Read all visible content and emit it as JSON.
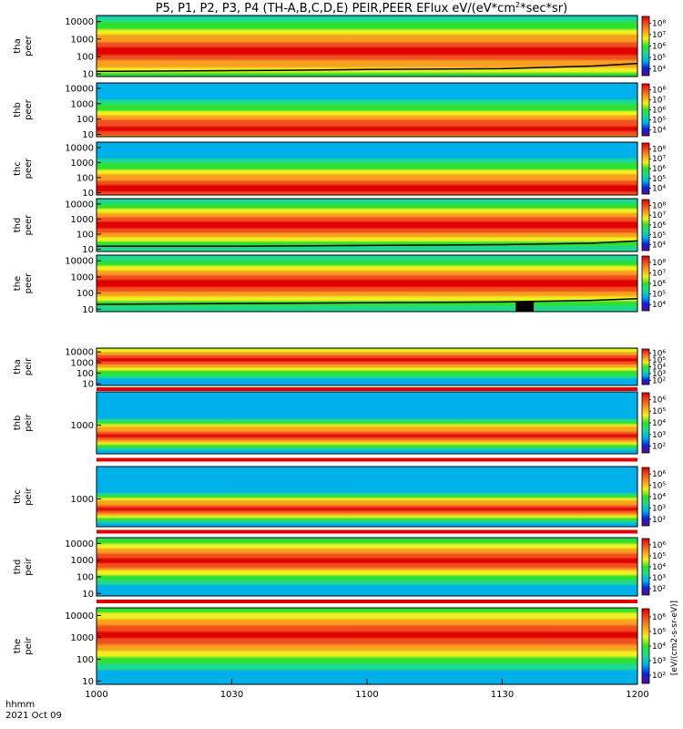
{
  "chart_data": {
    "type": "heatmap",
    "title_prefix": "P5, P1, P2, P3, P4 (TH-A,B,C,D,E) PEIR,PEER EFlux eV/(eV*cm",
    "title_superscript": "2",
    "title_suffix": "*sec*sr)",
    "time_axis_label": "hhmm",
    "date_label": "2021 Oct 09",
    "x_tick_labels": [
      "1000",
      "1030",
      "1100",
      "1130",
      "1200"
    ],
    "x_tick_minutes": [
      0,
      30,
      60,
      90,
      120
    ],
    "x_range_minutes": [
      0,
      120
    ],
    "colorbar_unit_label": "[eV/(cm2-s-sr-eV)]",
    "panels": [
      {
        "probe": "tha",
        "species": "peer",
        "y_tick_labels": [
          "10",
          "100",
          "1000",
          "10000"
        ],
        "y_range_log10": [
          0.85,
          4.35
        ],
        "colorbar_ticks": [
          "10⁴",
          "10⁵",
          "10⁶",
          "10⁷",
          "10⁸"
        ],
        "band_log10": 2.3,
        "band_width": 1.6,
        "potential_curve": {
          "minutes": [
            0,
            40,
            60,
            90,
            110,
            120
          ],
          "energy_log10": [
            1.15,
            1.2,
            1.25,
            1.3,
            1.45,
            1.6
          ]
        }
      },
      {
        "probe": "thb",
        "species": "peer",
        "y_tick_labels": [
          "10",
          "100",
          "1000",
          "10000"
        ],
        "y_range_log10": [
          0.85,
          4.35
        ],
        "colorbar_ticks": [
          "10⁴",
          "10⁵",
          "10⁶",
          "10⁷",
          "10⁸"
        ],
        "band_log10": 1.4,
        "band_width": 1.5,
        "potential_curve": null
      },
      {
        "probe": "thc",
        "species": "peer",
        "y_tick_labels": [
          "10",
          "100",
          "1000",
          "10000"
        ],
        "y_range_log10": [
          0.85,
          4.35
        ],
        "colorbar_ticks": [
          "10⁴",
          "10⁵",
          "10⁶",
          "10⁷",
          "10⁸"
        ],
        "band_log10": 1.3,
        "band_width": 1.6,
        "potential_curve": null
      },
      {
        "probe": "thd",
        "species": "peer",
        "y_tick_labels": [
          "10",
          "100",
          "1000",
          "10000"
        ],
        "y_range_log10": [
          0.85,
          4.35
        ],
        "colorbar_ticks": [
          "10⁴",
          "10⁵",
          "10⁶",
          "10⁷",
          "10⁸"
        ],
        "band_log10": 2.6,
        "band_width": 1.4,
        "potential_curve": {
          "minutes": [
            0,
            30,
            60,
            90,
            110,
            120
          ],
          "energy_log10": [
            1.2,
            1.2,
            1.25,
            1.3,
            1.4,
            1.55
          ]
        }
      },
      {
        "probe": "the",
        "species": "peer",
        "y_tick_labels": [
          "10",
          "100",
          "1000",
          "10000"
        ],
        "y_range_log10": [
          0.85,
          4.35
        ],
        "colorbar_ticks": [
          "10⁴",
          "10⁵",
          "10⁶",
          "10⁷",
          "10⁸"
        ],
        "band_log10": 2.6,
        "band_width": 1.4,
        "potential_curve": {
          "minutes": [
            0,
            30,
            60,
            90,
            110,
            120
          ],
          "energy_log10": [
            1.3,
            1.35,
            1.4,
            1.45,
            1.55,
            1.65
          ]
        },
        "data_gap_minutes": [
          93,
          97
        ]
      },
      {
        "probe": "tha",
        "species": "peir",
        "y_tick_labels": [
          "10",
          "100",
          "1000",
          "10000"
        ],
        "y_range_log10": [
          0.85,
          4.35
        ],
        "colorbar_ticks": [
          "10²",
          "10³",
          "10⁴",
          "10⁵",
          "10⁶"
        ],
        "band_log10": 3.2,
        "band_width": 1.3,
        "potential_curve": null
      },
      {
        "probe": "thb",
        "species": "peir",
        "y_tick_labels": [
          "1000"
        ],
        "y_range_log10": [
          1.8,
          4.4
        ],
        "colorbar_ticks": [
          "10²",
          "10³",
          "10⁴",
          "10⁵",
          "10⁶"
        ],
        "band_log10": 2.6,
        "band_width": 0.5,
        "potential_curve": null
      },
      {
        "probe": "thc",
        "species": "peir",
        "y_tick_labels": [
          "1000"
        ],
        "y_range_log10": [
          1.8,
          4.4
        ],
        "colorbar_ticks": [
          "10²",
          "10³",
          "10⁴",
          "10⁵",
          "10⁶"
        ],
        "band_log10": 2.6,
        "band_width": 0.5,
        "potential_curve": null
      },
      {
        "probe": "thd",
        "species": "peir",
        "y_tick_labels": [
          "10",
          "100",
          "1000",
          "10000"
        ],
        "y_range_log10": [
          0.85,
          4.35
        ],
        "colorbar_ticks": [
          "10²",
          "10³",
          "10⁴",
          "10⁵",
          "10⁶"
        ],
        "band_log10": 3.0,
        "band_width": 1.2,
        "potential_curve": null
      },
      {
        "probe": "the",
        "species": "peir",
        "y_tick_labels": [
          "10",
          "100",
          "1000",
          "10000"
        ],
        "y_range_log10": [
          0.85,
          4.35
        ],
        "colorbar_ticks": [
          "10²",
          "10³",
          "10⁴",
          "10⁵",
          "10⁶"
        ],
        "band_log10": 3.1,
        "band_width": 1.3,
        "potential_curve": null
      }
    ],
    "colormap": [
      "#5a0a8c",
      "#1020d8",
      "#00b0e8",
      "#20d890",
      "#30e030",
      "#f0f020",
      "#f8a020",
      "#f05020",
      "#e00000"
    ],
    "colors": {
      "background": "#ffffff",
      "frame": "#000000",
      "separator": "#e00000"
    }
  }
}
